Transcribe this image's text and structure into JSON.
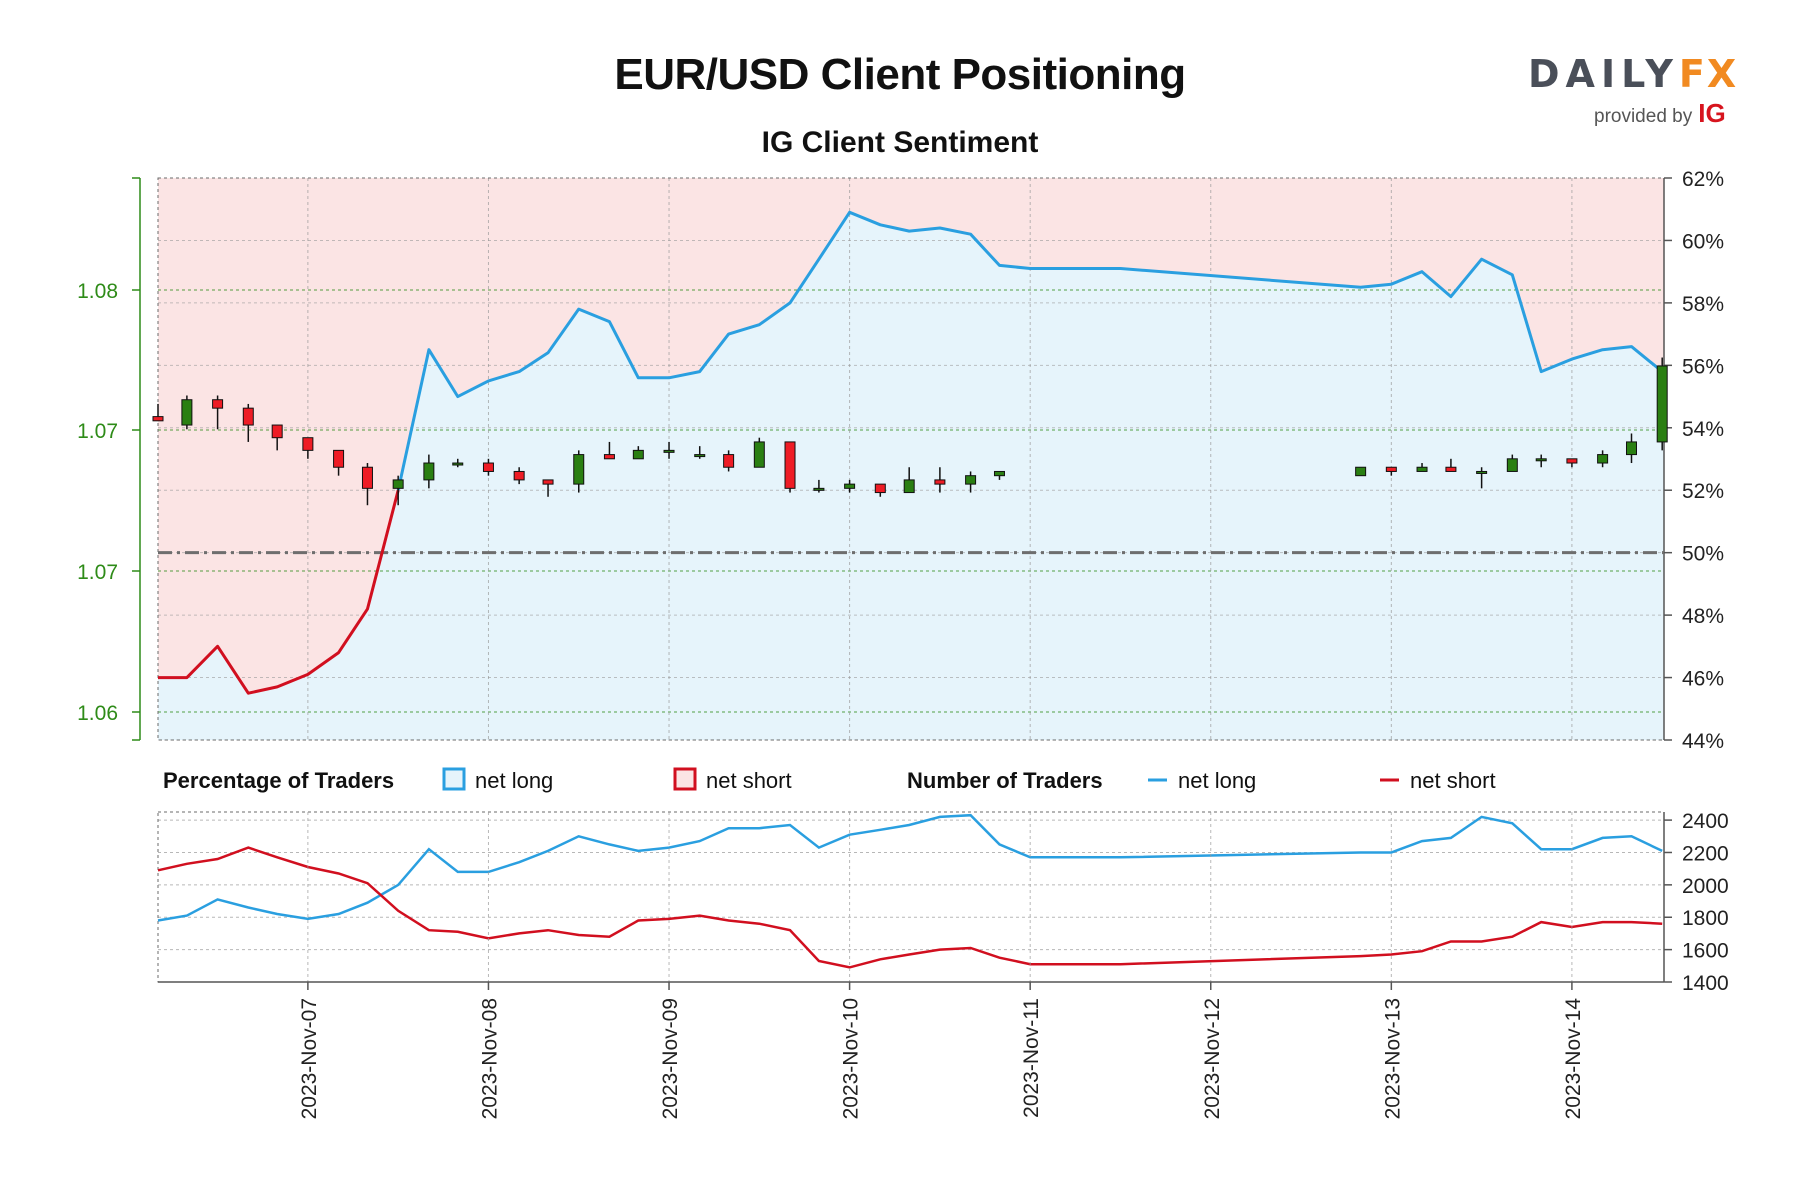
{
  "title": "EUR/USD Client Positioning",
  "subtitle": "IG Client Sentiment",
  "branding": {
    "logo_main": "DAILY",
    "logo_fx": "FX",
    "provided_by": "provided by",
    "ig": "IG"
  },
  "colors": {
    "net_long": "#2a9fe0",
    "net_short": "#d10f1f",
    "candle_up": "#2a7f12",
    "candle_down": "#ee1c25",
    "long_area": "#e6f4fb",
    "short_area": "#fbe4e4",
    "price_axis": "#2e8b18"
  },
  "legend": {
    "percentage_header": "Percentage of Traders",
    "pct_long": "net long",
    "pct_short": "net short",
    "number_header": "Number of Traders",
    "num_long": "net long",
    "num_short": "net short"
  },
  "chart_data": {
    "type": "line",
    "x_labels": [
      "2023-Nov-07",
      "2023-Nov-08",
      "2023-Nov-09",
      "2023-Nov-10",
      "2023-Nov-11",
      "2023-Nov-12",
      "2023-Nov-13",
      "2023-Nov-14"
    ],
    "price_axis": {
      "ticks": [
        "1.06",
        "1.07",
        "1.07",
        "1.08"
      ],
      "ylim": [
        1.06,
        1.07
      ]
    },
    "percent_axis": {
      "ticks": [
        "44%",
        "46%",
        "48%",
        "50%",
        "52%",
        "54%",
        "56%",
        "58%",
        "60%",
        "62%"
      ],
      "ylim": [
        44,
        62
      ]
    },
    "count_axis": {
      "ticks": [
        "1400",
        "1600",
        "1800",
        "2000",
        "2200",
        "2400"
      ],
      "ylim": [
        1400,
        2450
      ]
    },
    "x_range": [
      6.17,
      14.51
    ],
    "threshold_percent": 50,
    "candles": [
      {
        "t": 6.17,
        "o": 1.067,
        "h": 1.0673,
        "l": 1.0669,
        "c": 1.0669
      },
      {
        "t": 6.33,
        "o": 1.0668,
        "h": 1.0675,
        "l": 1.0667,
        "c": 1.0674
      },
      {
        "t": 6.5,
        "o": 1.0674,
        "h": 1.0675,
        "l": 1.0667,
        "c": 1.0672
      },
      {
        "t": 6.67,
        "o": 1.0672,
        "h": 1.0673,
        "l": 1.0664,
        "c": 1.0668
      },
      {
        "t": 6.83,
        "o": 1.0668,
        "h": 1.0668,
        "l": 1.0662,
        "c": 1.0665
      },
      {
        "t": 7.0,
        "o": 1.0665,
        "h": 1.0665,
        "l": 1.066,
        "c": 1.0662
      },
      {
        "t": 7.17,
        "o": 1.0662,
        "h": 1.0662,
        "l": 1.0656,
        "c": 1.0658
      },
      {
        "t": 7.33,
        "o": 1.0658,
        "h": 1.0659,
        "l": 1.0649,
        "c": 1.0653
      },
      {
        "t": 7.5,
        "o": 1.0653,
        "h": 1.0656,
        "l": 1.0649,
        "c": 1.0655
      },
      {
        "t": 7.67,
        "o": 1.0655,
        "h": 1.0661,
        "l": 1.0653,
        "c": 1.0659
      },
      {
        "t": 7.83,
        "o": 1.0659,
        "h": 1.066,
        "l": 1.0658,
        "c": 1.0659
      },
      {
        "t": 8.0,
        "o": 1.0659,
        "h": 1.066,
        "l": 1.0656,
        "c": 1.0657
      },
      {
        "t": 8.17,
        "o": 1.0657,
        "h": 1.0658,
        "l": 1.0654,
        "c": 1.0655
      },
      {
        "t": 8.33,
        "o": 1.0655,
        "h": 1.0655,
        "l": 1.0651,
        "c": 1.0654
      },
      {
        "t": 8.5,
        "o": 1.0654,
        "h": 1.0662,
        "l": 1.0652,
        "c": 1.0661
      },
      {
        "t": 8.67,
        "o": 1.0661,
        "h": 1.0664,
        "l": 1.066,
        "c": 1.066
      },
      {
        "t": 8.83,
        "o": 1.066,
        "h": 1.0663,
        "l": 1.066,
        "c": 1.0662
      },
      {
        "t": 9.0,
        "o": 1.0662,
        "h": 1.0664,
        "l": 1.066,
        "c": 1.0662
      },
      {
        "t": 9.17,
        "o": 1.0661,
        "h": 1.0663,
        "l": 1.066,
        "c": 1.0661
      },
      {
        "t": 9.33,
        "o": 1.0661,
        "h": 1.0662,
        "l": 1.0657,
        "c": 1.0658
      },
      {
        "t": 9.5,
        "o": 1.0658,
        "h": 1.0665,
        "l": 1.0658,
        "c": 1.0664
      },
      {
        "t": 9.67,
        "o": 1.0664,
        "h": 1.0664,
        "l": 1.0652,
        "c": 1.0653
      },
      {
        "t": 9.83,
        "o": 1.0653,
        "h": 1.0655,
        "l": 1.0652,
        "c": 1.0653
      },
      {
        "t": 10.0,
        "o": 1.0653,
        "h": 1.0655,
        "l": 1.0652,
        "c": 1.0654
      },
      {
        "t": 10.17,
        "o": 1.0654,
        "h": 1.0654,
        "l": 1.0651,
        "c": 1.0652
      },
      {
        "t": 10.33,
        "o": 1.0652,
        "h": 1.0658,
        "l": 1.0652,
        "c": 1.0655
      },
      {
        "t": 10.5,
        "o": 1.0655,
        "h": 1.0658,
        "l": 1.0652,
        "c": 1.0654
      },
      {
        "t": 10.67,
        "o": 1.0654,
        "h": 1.0657,
        "l": 1.0652,
        "c": 1.0656
      },
      {
        "t": 10.83,
        "o": 1.0656,
        "h": 1.0657,
        "l": 1.0655,
        "c": 1.0657
      },
      {
        "t": 12.83,
        "o": 1.0656,
        "h": 1.0658,
        "l": 1.0656,
        "c": 1.0658
      },
      {
        "t": 13.0,
        "o": 1.0658,
        "h": 1.0658,
        "l": 1.0656,
        "c": 1.0657
      },
      {
        "t": 13.17,
        "o": 1.0657,
        "h": 1.0659,
        "l": 1.0657,
        "c": 1.0658
      },
      {
        "t": 13.33,
        "o": 1.0658,
        "h": 1.066,
        "l": 1.0657,
        "c": 1.0657
      },
      {
        "t": 13.5,
        "o": 1.0657,
        "h": 1.0658,
        "l": 1.0653,
        "c": 1.0657
      },
      {
        "t": 13.67,
        "o": 1.0657,
        "h": 1.0661,
        "l": 1.0657,
        "c": 1.066
      },
      {
        "t": 13.83,
        "o": 1.066,
        "h": 1.0661,
        "l": 1.0658,
        "c": 1.066
      },
      {
        "t": 14.0,
        "o": 1.066,
        "h": 1.066,
        "l": 1.0658,
        "c": 1.0659
      },
      {
        "t": 14.17,
        "o": 1.0659,
        "h": 1.0662,
        "l": 1.0658,
        "c": 1.0661
      },
      {
        "t": 14.33,
        "o": 1.0661,
        "h": 1.0666,
        "l": 1.0659,
        "c": 1.0664
      },
      {
        "t": 14.5,
        "o": 1.0664,
        "h": 1.0684,
        "l": 1.0662,
        "c": 1.0682
      }
    ],
    "pct_long_series": [
      {
        "t": 7.5,
        "v": 52.0
      },
      {
        "t": 7.67,
        "v": 56.5
      },
      {
        "t": 7.83,
        "v": 55.0
      },
      {
        "t": 8.0,
        "v": 55.5
      },
      {
        "t": 8.17,
        "v": 55.8
      },
      {
        "t": 8.33,
        "v": 56.4
      },
      {
        "t": 8.5,
        "v": 57.8
      },
      {
        "t": 8.67,
        "v": 57.4
      },
      {
        "t": 8.83,
        "v": 55.6
      },
      {
        "t": 9.0,
        "v": 55.6
      },
      {
        "t": 9.17,
        "v": 55.8
      },
      {
        "t": 9.33,
        "v": 57.0
      },
      {
        "t": 9.5,
        "v": 57.3
      },
      {
        "t": 9.67,
        "v": 58.0
      },
      {
        "t": 9.83,
        "v": 59.4
      },
      {
        "t": 10.0,
        "v": 60.9
      },
      {
        "t": 10.17,
        "v": 60.5
      },
      {
        "t": 10.33,
        "v": 60.3
      },
      {
        "t": 10.5,
        "v": 60.4
      },
      {
        "t": 10.67,
        "v": 60.2
      },
      {
        "t": 10.83,
        "v": 59.2
      },
      {
        "t": 11.0,
        "v": 59.1
      },
      {
        "t": 11.5,
        "v": 59.1
      },
      {
        "t": 12.83,
        "v": 58.5
      },
      {
        "t": 13.0,
        "v": 58.6
      },
      {
        "t": 13.17,
        "v": 59.0
      },
      {
        "t": 13.33,
        "v": 58.2
      },
      {
        "t": 13.5,
        "v": 59.4
      },
      {
        "t": 13.67,
        "v": 58.9
      },
      {
        "t": 13.83,
        "v": 55.8
      },
      {
        "t": 14.0,
        "v": 56.2
      },
      {
        "t": 14.17,
        "v": 56.5
      },
      {
        "t": 14.33,
        "v": 56.6
      },
      {
        "t": 14.5,
        "v": 55.8
      }
    ],
    "pct_short_series": [
      {
        "t": 6.17,
        "v": 46.0
      },
      {
        "t": 6.33,
        "v": 46.0
      },
      {
        "t": 6.5,
        "v": 47.0
      },
      {
        "t": 6.67,
        "v": 45.5
      },
      {
        "t": 6.83,
        "v": 45.7
      },
      {
        "t": 7.0,
        "v": 46.1
      },
      {
        "t": 7.17,
        "v": 46.8
      },
      {
        "t": 7.33,
        "v": 48.2
      },
      {
        "t": 7.5,
        "v": 52.0
      }
    ],
    "count_long_series": [
      {
        "t": 6.17,
        "v": 1780
      },
      {
        "t": 6.33,
        "v": 1810
      },
      {
        "t": 6.5,
        "v": 1910
      },
      {
        "t": 6.67,
        "v": 1860
      },
      {
        "t": 6.83,
        "v": 1820
      },
      {
        "t": 7.0,
        "v": 1790
      },
      {
        "t": 7.17,
        "v": 1820
      },
      {
        "t": 7.33,
        "v": 1890
      },
      {
        "t": 7.5,
        "v": 2000
      },
      {
        "t": 7.67,
        "v": 2220
      },
      {
        "t": 7.83,
        "v": 2080
      },
      {
        "t": 8.0,
        "v": 2080
      },
      {
        "t": 8.17,
        "v": 2140
      },
      {
        "t": 8.33,
        "v": 2210
      },
      {
        "t": 8.5,
        "v": 2300
      },
      {
        "t": 8.67,
        "v": 2250
      },
      {
        "t": 8.83,
        "v": 2210
      },
      {
        "t": 9.0,
        "v": 2230
      },
      {
        "t": 9.17,
        "v": 2270
      },
      {
        "t": 9.33,
        "v": 2350
      },
      {
        "t": 9.5,
        "v": 2350
      },
      {
        "t": 9.67,
        "v": 2370
      },
      {
        "t": 9.83,
        "v": 2230
      },
      {
        "t": 10.0,
        "v": 2310
      },
      {
        "t": 10.17,
        "v": 2340
      },
      {
        "t": 10.33,
        "v": 2370
      },
      {
        "t": 10.5,
        "v": 2420
      },
      {
        "t": 10.67,
        "v": 2430
      },
      {
        "t": 10.83,
        "v": 2250
      },
      {
        "t": 11.0,
        "v": 2170
      },
      {
        "t": 11.5,
        "v": 2170
      },
      {
        "t": 12.83,
        "v": 2200
      },
      {
        "t": 13.0,
        "v": 2200
      },
      {
        "t": 13.17,
        "v": 2270
      },
      {
        "t": 13.33,
        "v": 2290
      },
      {
        "t": 13.5,
        "v": 2420
      },
      {
        "t": 13.67,
        "v": 2380
      },
      {
        "t": 13.83,
        "v": 2220
      },
      {
        "t": 14.0,
        "v": 2220
      },
      {
        "t": 14.17,
        "v": 2290
      },
      {
        "t": 14.33,
        "v": 2300
      },
      {
        "t": 14.5,
        "v": 2210
      }
    ],
    "count_short_series": [
      {
        "t": 6.17,
        "v": 2090
      },
      {
        "t": 6.33,
        "v": 2130
      },
      {
        "t": 6.5,
        "v": 2160
      },
      {
        "t": 6.67,
        "v": 2230
      },
      {
        "t": 6.83,
        "v": 2170
      },
      {
        "t": 7.0,
        "v": 2110
      },
      {
        "t": 7.17,
        "v": 2070
      },
      {
        "t": 7.33,
        "v": 2010
      },
      {
        "t": 7.5,
        "v": 1840
      },
      {
        "t": 7.67,
        "v": 1720
      },
      {
        "t": 7.83,
        "v": 1710
      },
      {
        "t": 8.0,
        "v": 1670
      },
      {
        "t": 8.17,
        "v": 1700
      },
      {
        "t": 8.33,
        "v": 1720
      },
      {
        "t": 8.5,
        "v": 1690
      },
      {
        "t": 8.67,
        "v": 1680
      },
      {
        "t": 8.83,
        "v": 1780
      },
      {
        "t": 9.0,
        "v": 1790
      },
      {
        "t": 9.17,
        "v": 1810
      },
      {
        "t": 9.33,
        "v": 1780
      },
      {
        "t": 9.5,
        "v": 1760
      },
      {
        "t": 9.67,
        "v": 1720
      },
      {
        "t": 9.83,
        "v": 1530
      },
      {
        "t": 10.0,
        "v": 1490
      },
      {
        "t": 10.17,
        "v": 1540
      },
      {
        "t": 10.33,
        "v": 1570
      },
      {
        "t": 10.5,
        "v": 1600
      },
      {
        "t": 10.67,
        "v": 1610
      },
      {
        "t": 10.83,
        "v": 1550
      },
      {
        "t": 11.0,
        "v": 1510
      },
      {
        "t": 11.5,
        "v": 1510
      },
      {
        "t": 12.83,
        "v": 1560
      },
      {
        "t": 13.0,
        "v": 1570
      },
      {
        "t": 13.17,
        "v": 1590
      },
      {
        "t": 13.33,
        "v": 1650
      },
      {
        "t": 13.5,
        "v": 1650
      },
      {
        "t": 13.67,
        "v": 1680
      },
      {
        "t": 13.83,
        "v": 1770
      },
      {
        "t": 14.0,
        "v": 1740
      },
      {
        "t": 14.17,
        "v": 1770
      },
      {
        "t": 14.33,
        "v": 1770
      },
      {
        "t": 14.5,
        "v": 1760
      }
    ]
  }
}
